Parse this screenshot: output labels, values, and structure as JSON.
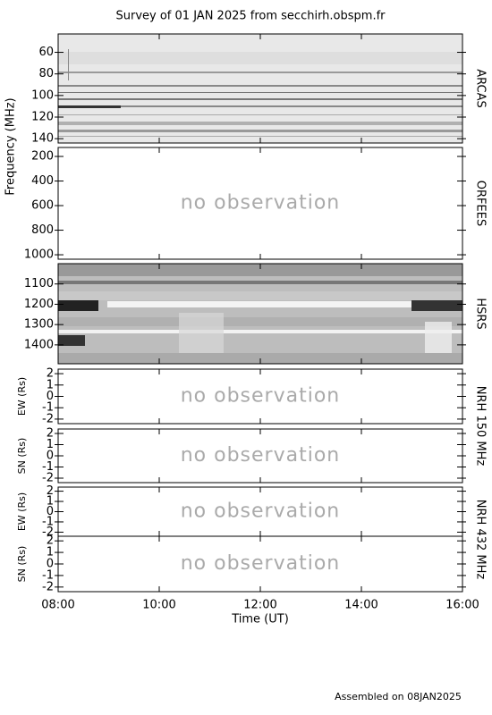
{
  "title": "Survey of 01 JAN 2025 from secchirh.obspm.fr",
  "ylabel": "Frequency (MHz)",
  "xlabel": "Time (UT)",
  "xlim": [
    8,
    16
  ],
  "xticks": [
    {
      "value": 8,
      "label": "08:00"
    },
    {
      "value": 10,
      "label": "10:00"
    },
    {
      "value": 12,
      "label": "12:00"
    },
    {
      "value": 14,
      "label": "14:00"
    },
    {
      "value": 16,
      "label": "16:00"
    }
  ],
  "footer": "Assembled on 08JAN2025",
  "chart_data": [
    {
      "type": "spectrogram",
      "instrument": "ARCAS",
      "ylim": [
        144,
        43
      ],
      "yticks": [
        60,
        80,
        100,
        120,
        140
      ]
    },
    {
      "type": "empty",
      "instrument": "ORFEES",
      "note": "no observation",
      "ylim": [
        1036,
        127
      ],
      "yticks": [
        200,
        400,
        600,
        800,
        1000
      ]
    },
    {
      "type": "spectrogram",
      "instrument": "HSRS",
      "ylim": [
        1493,
        1000
      ],
      "yticks": [
        1100,
        1200,
        1300,
        1400
      ]
    },
    {
      "type": "empty",
      "instrument": "NRH 150 MHz",
      "ylabel": "EW (Rs)",
      "note": "no observation",
      "ylim": [
        -2.4,
        2.4
      ],
      "yticks": [
        2,
        1,
        0,
        -1,
        -2
      ]
    },
    {
      "type": "empty",
      "ylabel": "SN (Rs)",
      "note": "no observation",
      "ylim": [
        -2.4,
        2.4
      ],
      "yticks": [
        2,
        1,
        0,
        -1,
        -2
      ]
    },
    {
      "type": "empty",
      "instrument": "NRH 432 MHz",
      "ylabel": "EW (Rs)",
      "note": "no observation",
      "ylim": [
        -2.4,
        2.4
      ],
      "yticks": [
        2,
        1,
        0,
        -1,
        -2
      ]
    },
    {
      "type": "empty",
      "ylabel": "SN (Rs)",
      "note": "no observation",
      "ylim": [
        -2.4,
        2.4
      ],
      "yticks": [
        2,
        1,
        0,
        -1,
        -2
      ]
    }
  ]
}
